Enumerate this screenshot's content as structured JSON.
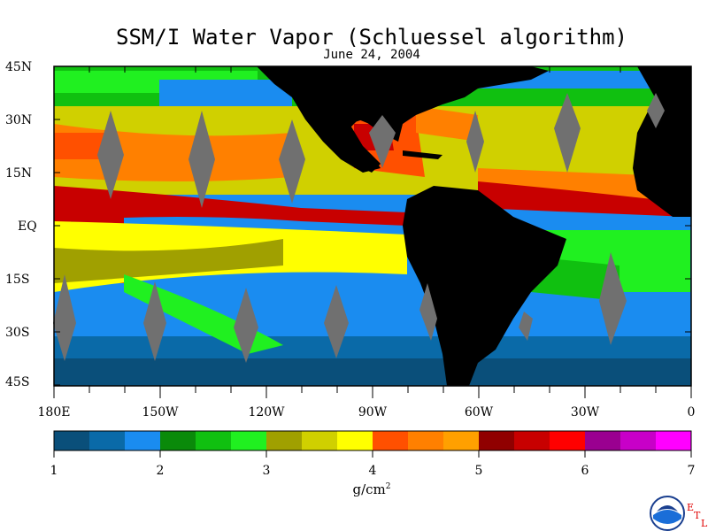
{
  "title": "SSM/I Water Vapor (Schluessel algorithm)",
  "subtitle": "June 24, 2004",
  "lat_labels": [
    "45N",
    "30N",
    "15N",
    "EQ",
    "15S",
    "30S",
    "45S"
  ],
  "lon_labels": [
    "180E",
    "150W",
    "120W",
    "90W",
    "60W",
    "30W",
    "0"
  ],
  "colorbar": {
    "ticks": [
      "1",
      "2",
      "3",
      "4",
      "5",
      "6",
      "7"
    ],
    "units": "g/cm",
    "units_sup": "2",
    "colors": [
      "#0a4f7a",
      "#0a6aa8",
      "#1a8cf0",
      "#0a8a0a",
      "#10c010",
      "#20f020",
      "#a0a000",
      "#d0d000",
      "#ffff00",
      "#ff5000",
      "#ff8000",
      "#ffa000",
      "#900000",
      "#c80000",
      "#ff0000",
      "#9a0090",
      "#c800c8",
      "#ff00ff"
    ]
  },
  "logo": {
    "name": "NOAA",
    "etl_letters": [
      "E",
      "T",
      "L"
    ]
  }
}
